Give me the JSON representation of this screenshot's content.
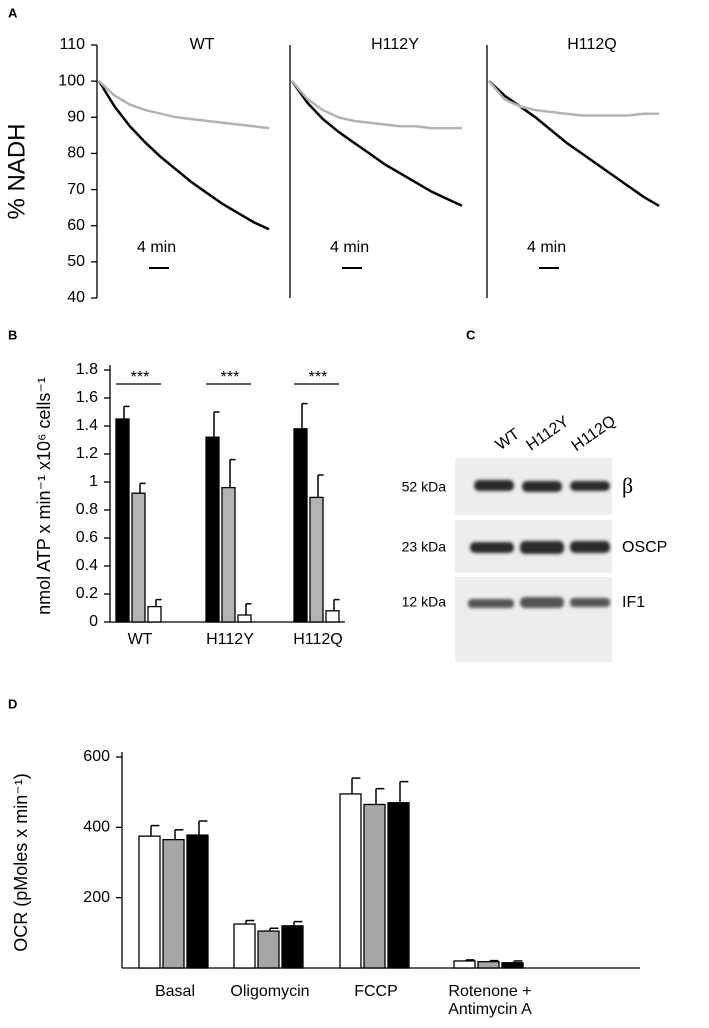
{
  "chart_data": [
    {
      "type": "line",
      "panel": "A",
      "title": "WT",
      "ylabel": "% NADH",
      "ylim": [
        40,
        110
      ],
      "yticks": [
        40,
        50,
        60,
        70,
        80,
        90,
        100,
        110
      ],
      "scalebar": "4 min",
      "series": [
        {
          "color": "#000000",
          "values": [
            100,
            93,
            87.5,
            83,
            79,
            75.5,
            72,
            69,
            66,
            63.5,
            61,
            59
          ]
        },
        {
          "color": "#b3b3b3",
          "values": [
            100,
            96,
            93.5,
            92,
            91,
            90,
            89.5,
            89,
            88.5,
            88,
            87.5,
            87
          ]
        }
      ]
    },
    {
      "type": "line",
      "title": "H112Y",
      "ylim": [
        40,
        110
      ],
      "scalebar": "4 min",
      "series": [
        {
          "color": "#000000",
          "values": [
            100,
            94,
            89.5,
            86,
            83,
            80,
            77,
            74.5,
            72,
            69.5,
            67.5,
            65.5
          ]
        },
        {
          "color": "#b3b3b3",
          "values": [
            100,
            95,
            92,
            90,
            89,
            88.5,
            88,
            87.5,
            87.5,
            87,
            87,
            87
          ]
        }
      ]
    },
    {
      "type": "line",
      "title": "H112Q",
      "ylim": [
        40,
        110
      ],
      "scalebar": "4 min",
      "series": [
        {
          "color": "#000000",
          "values": [
            100,
            96,
            93,
            90,
            86.5,
            83,
            80,
            77,
            74,
            71,
            68,
            65.5
          ]
        },
        {
          "color": "#b3b3b3",
          "values": [
            100,
            95,
            93,
            92,
            91.5,
            91,
            90.5,
            90.5,
            90.5,
            90.5,
            91,
            91
          ]
        }
      ]
    },
    {
      "type": "bar",
      "panel": "B",
      "ylabel": "nmol ATP x min⁻¹ x10⁶ cells⁻¹",
      "ylim": [
        0,
        1.8
      ],
      "yticks": [
        0,
        0.2,
        0.4,
        0.6,
        0.8,
        1,
        1.2,
        1.4,
        1.6,
        1.8
      ],
      "categories": [
        "WT",
        "H112Y",
        "H112Q"
      ],
      "annotations": [
        "***",
        "***",
        "***"
      ],
      "series": [
        {
          "color": "#000000",
          "values": [
            1.45,
            1.32,
            1.38
          ],
          "errors": [
            0.09,
            0.18,
            0.18
          ]
        },
        {
          "color": "#b3b3b3",
          "values": [
            0.92,
            0.96,
            0.89
          ],
          "errors": [
            0.07,
            0.2,
            0.16
          ]
        },
        {
          "color": "#ffffff",
          "values": [
            0.11,
            0.05,
            0.08
          ],
          "errors": [
            0.05,
            0.08,
            0.08
          ]
        }
      ]
    },
    {
      "type": "bar",
      "panel": "D",
      "ylabel": "OCR (pMoles x min⁻¹)",
      "ylim": [
        0,
        600
      ],
      "yticks": [
        200,
        400,
        600
      ],
      "categories": [
        "Basal",
        "Oligomycin",
        "FCCP",
        "Rotenone + Antimycin A"
      ],
      "series": [
        {
          "color": "#ffffff",
          "values": [
            375,
            125,
            495,
            20
          ],
          "errors": [
            30,
            10,
            45,
            3
          ]
        },
        {
          "color": "#a6a6a6",
          "values": [
            365,
            105,
            465,
            18
          ],
          "errors": [
            28,
            8,
            45,
            3
          ]
        },
        {
          "color": "#000000",
          "values": [
            378,
            120,
            470,
            15
          ],
          "errors": [
            40,
            12,
            60,
            5
          ]
        }
      ]
    }
  ],
  "blot": {
    "panel": "C",
    "lanes": [
      "WT",
      "H112Y",
      "H112Q"
    ],
    "rows": [
      {
        "size": "52 kDa",
        "protein": "β"
      },
      {
        "size": "23 kDa",
        "protein": "OSCP"
      },
      {
        "size": "12 kDa",
        "protein": "IF1"
      }
    ]
  }
}
